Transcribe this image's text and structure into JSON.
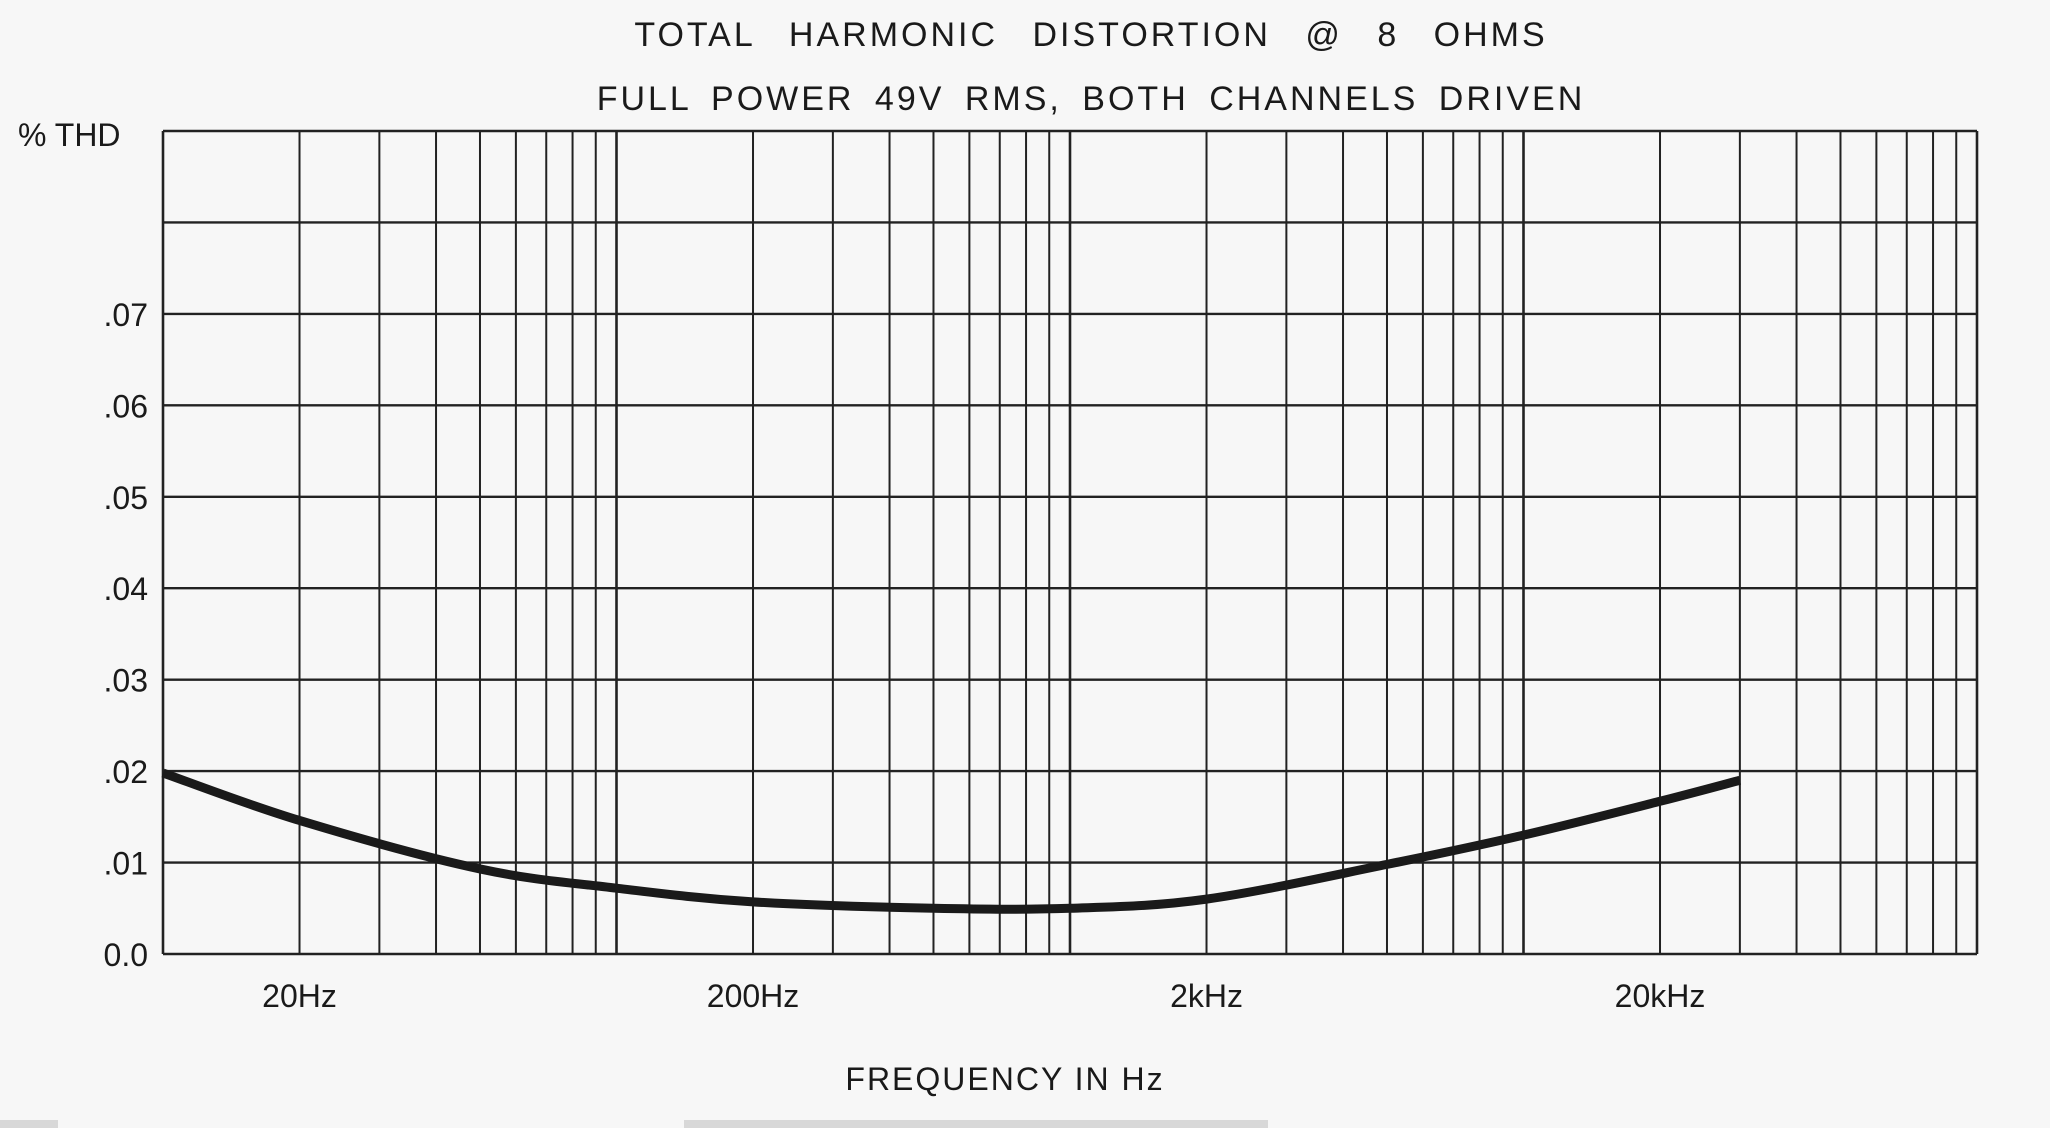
{
  "chart_data": {
    "type": "line",
    "title": "TOTAL HARMONIC DISTORTION @ 8 OHMS",
    "subtitle": "FULL POWER 49V RMS, BOTH CHANNELS DRIVEN",
    "xlabel": "FREQUENCY IN Hz",
    "ylabel": "% THD",
    "xscale": "log",
    "xlim": [
      10,
      100000
    ],
    "ylim": [
      0,
      0.09
    ],
    "grid": true,
    "x_ticks": [
      {
        "value": 20,
        "label": "20Hz"
      },
      {
        "value": 200,
        "label": "200Hz"
      },
      {
        "value": 2000,
        "label": "2kHz"
      },
      {
        "value": 20000,
        "label": "20kHz"
      }
    ],
    "y_ticks": [
      {
        "value": 0,
        "label": "0.0"
      },
      {
        "value": 0.01,
        "label": ".01"
      },
      {
        "value": 0.02,
        "label": ".02"
      },
      {
        "value": 0.03,
        "label": ".03"
      },
      {
        "value": 0.04,
        "label": ".04"
      },
      {
        "value": 0.05,
        "label": ".05"
      },
      {
        "value": 0.06,
        "label": ".06"
      },
      {
        "value": 0.07,
        "label": ".07"
      }
    ],
    "series": [
      {
        "color": "#1a1a1a",
        "x": [
          10,
          20,
          50,
          100,
          200,
          500,
          1000,
          2000,
          5000,
          10000,
          20000,
          30000
        ],
        "y": [
          0.0198,
          0.0146,
          0.0093,
          0.0072,
          0.0057,
          0.005,
          0.005,
          0.006,
          0.0098,
          0.013,
          0.0167,
          0.019
        ]
      }
    ]
  }
}
